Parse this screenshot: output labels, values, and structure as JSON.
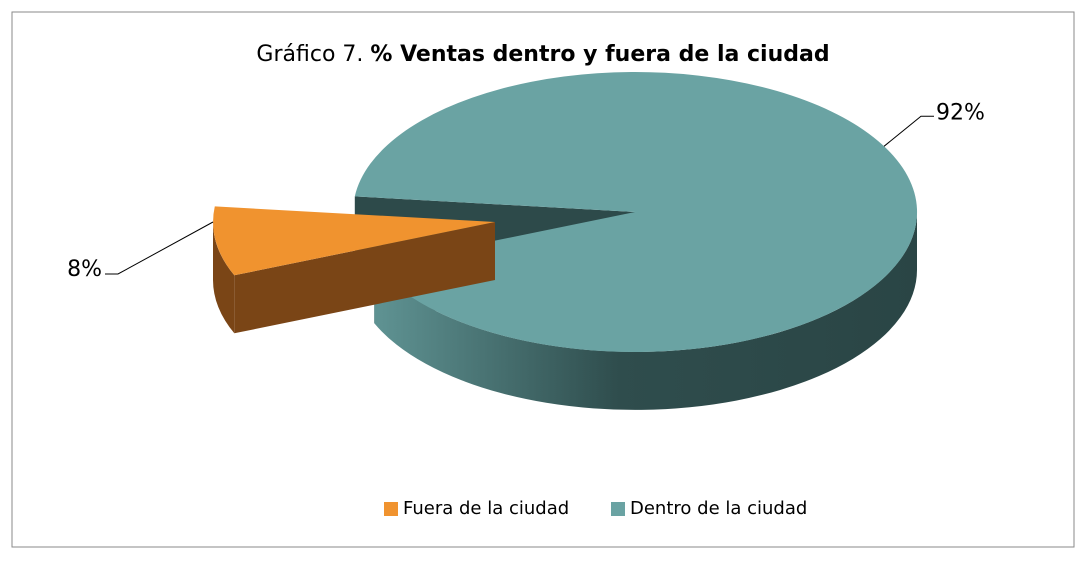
{
  "chart_data": {
    "type": "pie3d",
    "title": {
      "prefix": "Gráfico 7.",
      "main": "% Ventas dentro y fuera de la ciudad"
    },
    "categories": [
      "Fuera de la ciudad",
      "Dentro de la ciudad"
    ],
    "values": [
      8,
      92
    ],
    "value_labels": [
      "8%",
      "92%"
    ],
    "colors": [
      "#f0932f",
      "#6aa3a3"
    ],
    "legend": "bottom"
  }
}
